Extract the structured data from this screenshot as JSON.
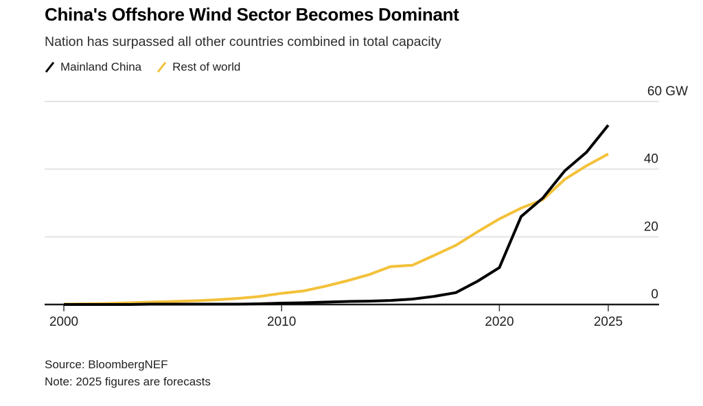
{
  "header": {
    "title": "China's Offshore Wind Sector Becomes Dominant",
    "subtitle": "Nation has surpassed all other countries combined in total capacity"
  },
  "legend": [
    {
      "label": "Mainland China",
      "color": "#000000"
    },
    {
      "label": "Rest of world",
      "color": "#F3C13A"
    }
  ],
  "footer": {
    "source": "Source: BloombergNEF",
    "note": "Note: 2025 figures are forecasts"
  },
  "colors": {
    "china_line": "#000000",
    "row_line": "#F3C13A",
    "gridline": "#e3e3e3",
    "axis_baseline": "#1a1a1a",
    "tick_text": "#1f1f1f"
  },
  "chart_data": {
    "type": "line",
    "title": "China's Offshore Wind Sector Becomes Dominant",
    "subtitle": "Nation has surpassed all other countries combined in total capacity",
    "unit": "GW",
    "grid": "horizontal",
    "legend_position": "top-left",
    "xlim": [
      2000,
      2025
    ],
    "ylim": [
      0,
      60
    ],
    "x": [
      2000,
      2001,
      2002,
      2003,
      2004,
      2005,
      2006,
      2007,
      2008,
      2009,
      2010,
      2011,
      2012,
      2013,
      2014,
      2015,
      2016,
      2017,
      2018,
      2019,
      2020,
      2021,
      2022,
      2023,
      2024,
      2025
    ],
    "series": [
      {
        "name": "Rest of world",
        "color": "#F3C13A",
        "values": [
          0.1,
          0.2,
          0.3,
          0.5,
          0.7,
          0.9,
          1.1,
          1.4,
          1.8,
          2.4,
          3.3,
          4.0,
          5.4,
          7.0,
          8.8,
          11.2,
          11.6,
          14.5,
          17.5,
          21.5,
          25.3,
          28.5,
          31.0,
          37.0,
          41.0,
          44.5
        ]
      },
      {
        "name": "Mainland China",
        "color": "#000000",
        "values": [
          0,
          0,
          0,
          0,
          0.1,
          0.1,
          0.1,
          0.1,
          0.1,
          0.2,
          0.4,
          0.5,
          0.7,
          0.9,
          1.0,
          1.2,
          1.6,
          2.4,
          3.5,
          6.9,
          10.9,
          26.0,
          31.5,
          39.5,
          45.0,
          53.0
        ]
      }
    ],
    "x_ticks": [
      {
        "value": 2000,
        "label": "2000"
      },
      {
        "value": 2010,
        "label": "2010"
      },
      {
        "value": 2020,
        "label": "2020"
      },
      {
        "value": 2025,
        "label": "2025"
      }
    ],
    "y_ticks": [
      {
        "value": 0,
        "label": "0"
      },
      {
        "value": 20,
        "label": "20"
      },
      {
        "value": 40,
        "label": "40"
      },
      {
        "value": 60,
        "label": "60 GW"
      }
    ]
  }
}
